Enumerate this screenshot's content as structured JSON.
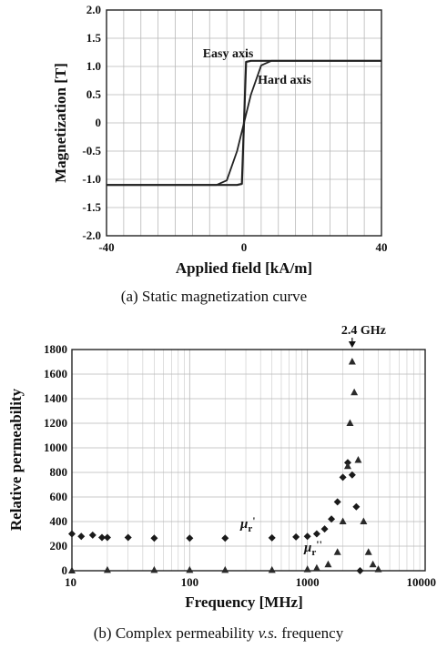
{
  "chart_data": [
    {
      "type": "line",
      "xlabel": "Applied field [kA/m]",
      "ylabel": "Magnetization [T]",
      "xlim": [
        -40,
        40
      ],
      "ylim": [
        -2.0,
        2.0
      ],
      "x_ticks": [
        "-40",
        "0",
        "40"
      ],
      "y_ticks": [
        "2.0",
        "1.5",
        "1.0",
        "0.5",
        "0",
        "-0.5",
        "-1.0",
        "-1.5",
        "-2.0"
      ],
      "grid": true,
      "caption": "(a) Static magnetization curve",
      "annotations": [
        "Easy axis",
        "Hard axis"
      ],
      "series": [
        {
          "name": "Easy axis",
          "x": [
            -40,
            -2,
            -0.6,
            0,
            0.6,
            2,
            40
          ],
          "y": [
            -1.1,
            -1.1,
            -1.08,
            0,
            1.08,
            1.1,
            1.1
          ]
        },
        {
          "name": "Hard axis",
          "x": [
            -40,
            -8,
            -5,
            -2,
            0,
            2,
            5,
            8,
            40
          ],
          "y": [
            -1.1,
            -1.1,
            -1.02,
            -0.5,
            0,
            0.5,
            1.02,
            1.1,
            1.1
          ]
        }
      ]
    },
    {
      "type": "scatter",
      "xlabel": "Frequency [MHz]",
      "ylabel": "Relative permeability",
      "xscale": "log",
      "xlim": [
        10,
        10000
      ],
      "ylim": [
        0,
        1800
      ],
      "x_ticks": [
        "10",
        "100",
        "1000",
        "10000"
      ],
      "y_ticks": [
        "1800",
        "1600",
        "1400",
        "1200",
        "1000",
        "800",
        "600",
        "400",
        "200",
        "0"
      ],
      "grid": true,
      "caption_parts": [
        "(b) Complex permeability ",
        "v.s.",
        " frequency"
      ],
      "annotation": "2.4 GHz",
      "annotation_x": 2400,
      "series": [
        {
          "name": "μr'",
          "label_main": "μ",
          "label_sub": "r",
          "label_prime": "'",
          "x": [
            10,
            12,
            15,
            18,
            20,
            30,
            50,
            100,
            200,
            500,
            800,
            1000,
            1200,
            1400,
            1600,
            1800,
            2000,
            2200,
            2400,
            2600,
            2800
          ],
          "y": [
            300,
            280,
            290,
            270,
            270,
            270,
            265,
            265,
            265,
            268,
            275,
            280,
            300,
            340,
            420,
            560,
            760,
            880,
            780,
            520,
            0
          ]
        },
        {
          "name": "μr''",
          "label_main": "μ",
          "label_sub": "r",
          "label_prime": "''",
          "x": [
            10,
            20,
            50,
            100,
            200,
            500,
            1000,
            1200,
            1500,
            1800,
            2000,
            2200,
            2300,
            2400,
            2500,
            2700,
            3000,
            3300,
            3600,
            4000
          ],
          "y": [
            0,
            5,
            5,
            5,
            5,
            5,
            10,
            20,
            50,
            150,
            400,
            850,
            1200,
            1700,
            1450,
            900,
            400,
            150,
            50,
            10
          ]
        }
      ]
    }
  ]
}
